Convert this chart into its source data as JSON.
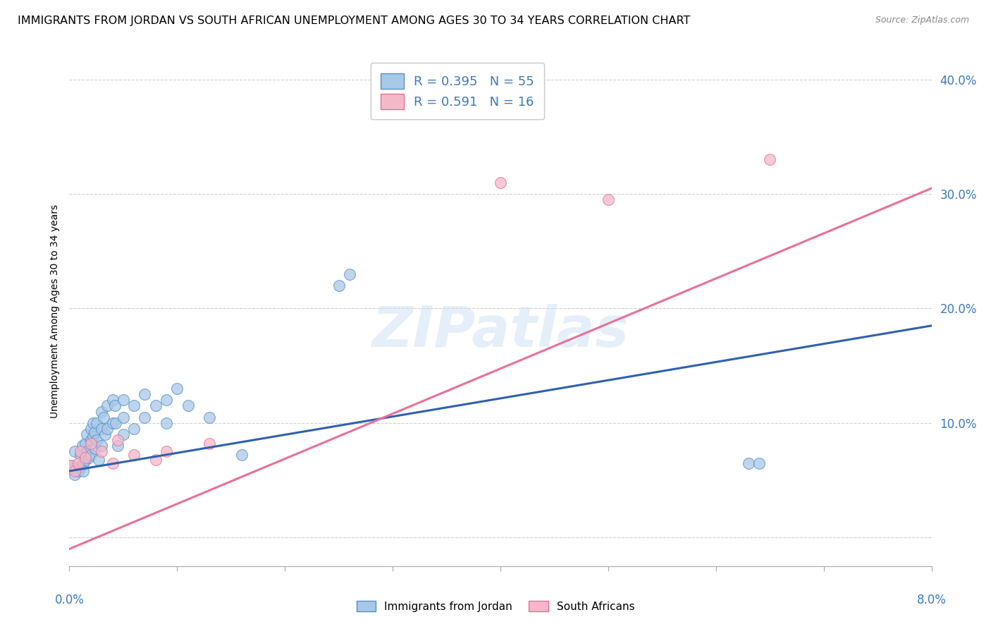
{
  "title": "IMMIGRANTS FROM JORDAN VS SOUTH AFRICAN UNEMPLOYMENT AMONG AGES 30 TO 34 YEARS CORRELATION CHART",
  "source": "Source: ZipAtlas.com",
  "ylabel": "Unemployment Among Ages 30 to 34 years",
  "xlim": [
    0.0,
    0.08
  ],
  "ylim": [
    -0.025,
    0.42
  ],
  "yticks": [
    0.0,
    0.1,
    0.2,
    0.3,
    0.4
  ],
  "ytick_labels": [
    "",
    "10.0%",
    "20.0%",
    "30.0%",
    "40.0%"
  ],
  "xticks": [
    0.0,
    0.01,
    0.02,
    0.03,
    0.04,
    0.05,
    0.06,
    0.07,
    0.08
  ],
  "blue_R": "0.395",
  "blue_N": "55",
  "pink_R": "0.591",
  "pink_N": "16",
  "blue_color": "#a8c8e8",
  "pink_color": "#f4b8c8",
  "blue_edge_color": "#5590c8",
  "pink_edge_color": "#e8709a",
  "blue_line_color": "#3060b0",
  "pink_line_color": "#e8709a",
  "blue_scatter_x": [
    0.0002,
    0.0003,
    0.0005,
    0.0005,
    0.0008,
    0.001,
    0.001,
    0.0012,
    0.0013,
    0.0013,
    0.0015,
    0.0015,
    0.0016,
    0.0017,
    0.0018,
    0.002,
    0.002,
    0.002,
    0.0022,
    0.0022,
    0.0023,
    0.0024,
    0.0025,
    0.0025,
    0.0027,
    0.003,
    0.003,
    0.003,
    0.0032,
    0.0033,
    0.0035,
    0.0035,
    0.004,
    0.004,
    0.0042,
    0.0043,
    0.0045,
    0.005,
    0.005,
    0.005,
    0.006,
    0.006,
    0.007,
    0.007,
    0.008,
    0.009,
    0.009,
    0.01,
    0.011,
    0.013,
    0.016,
    0.025,
    0.026,
    0.063,
    0.064
  ],
  "blue_scatter_y": [
    0.063,
    0.06,
    0.075,
    0.055,
    0.058,
    0.072,
    0.062,
    0.08,
    0.065,
    0.058,
    0.082,
    0.068,
    0.09,
    0.075,
    0.07,
    0.095,
    0.085,
    0.072,
    0.1,
    0.088,
    0.092,
    0.078,
    0.1,
    0.085,
    0.068,
    0.11,
    0.095,
    0.08,
    0.105,
    0.09,
    0.115,
    0.095,
    0.12,
    0.1,
    0.115,
    0.1,
    0.08,
    0.12,
    0.105,
    0.09,
    0.115,
    0.095,
    0.125,
    0.105,
    0.115,
    0.12,
    0.1,
    0.13,
    0.115,
    0.105,
    0.072,
    0.22,
    0.23,
    0.065,
    0.065
  ],
  "pink_scatter_x": [
    0.0002,
    0.0005,
    0.0008,
    0.001,
    0.0015,
    0.002,
    0.003,
    0.004,
    0.0045,
    0.006,
    0.008,
    0.009,
    0.013,
    0.04,
    0.05,
    0.065
  ],
  "pink_scatter_y": [
    0.063,
    0.058,
    0.065,
    0.075,
    0.07,
    0.082,
    0.075,
    0.065,
    0.085,
    0.072,
    0.068,
    0.075,
    0.082,
    0.31,
    0.295,
    0.33
  ],
  "blue_line_x": [
    0.0,
    0.08
  ],
  "blue_line_y": [
    0.058,
    0.185
  ],
  "pink_line_x": [
    0.0,
    0.08
  ],
  "pink_line_y": [
    -0.01,
    0.305
  ],
  "watermark": "ZIPatlas",
  "title_fontsize": 11.5,
  "axis_label_fontsize": 10,
  "legend_fontsize": 13
}
